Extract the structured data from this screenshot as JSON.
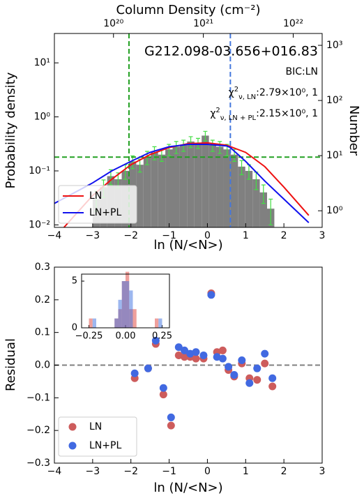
{
  "chart_data": [
    {
      "type": "histogram",
      "title": "G212.098-03.656+016.83",
      "annotations": [
        "BIC:LN"
      ],
      "fit_stats": [
        {
          "symbol": "χ",
          "sup": "2",
          "sub": "ν, LN",
          "text": ":2.79×10⁰, 1"
        },
        {
          "symbol": "χ",
          "sup": "2",
          "sub": "ν, LN + PL",
          "text": ":2.15×10⁰, 1"
        }
      ],
      "xlabel": "ln (N/<N>)",
      "ylabel": "Probability density",
      "y2label": "Number",
      "x2label": "Column Density (cm⁻²)",
      "bins": [
        -3.0,
        -2.81,
        -2.62,
        -2.43,
        -2.24,
        -2.05,
        -1.86,
        -1.67,
        -1.48,
        -1.29,
        -1.1,
        -0.91,
        -0.72,
        -0.53,
        -0.34,
        -0.15,
        0.04,
        0.23,
        0.42,
        0.61,
        0.8,
        0.99,
        1.18,
        1.37,
        1.56,
        1.75
      ],
      "values": [
        0.03,
        0.05,
        0.08,
        0.07,
        0.1,
        0.15,
        0.13,
        0.18,
        0.22,
        0.2,
        0.25,
        0.28,
        0.3,
        0.35,
        0.33,
        0.45,
        0.3,
        0.28,
        0.25,
        0.2,
        0.12,
        0.1,
        0.07,
        0.04,
        0.02
      ],
      "errors": [
        0.012,
        0.018,
        0.025,
        0.022,
        0.03,
        0.04,
        0.035,
        0.05,
        0.06,
        0.05,
        0.06,
        0.07,
        0.07,
        0.08,
        0.07,
        0.09,
        0.07,
        0.07,
        0.06,
        0.05,
        0.035,
        0.03,
        0.025,
        0.015,
        0.01
      ],
      "color": "#808080",
      "error_color": "#44dd44",
      "series": [
        {
          "name": "LN",
          "color": "#ee1111",
          "x": [
            -3.75,
            -3,
            -2.5,
            -2,
            -1.5,
            -1,
            -0.5,
            0,
            0.5,
            1,
            1.5,
            2,
            2.65
          ],
          "values": [
            0.009,
            0.035,
            0.07,
            0.13,
            0.2,
            0.27,
            0.32,
            0.33,
            0.3,
            0.22,
            0.12,
            0.05,
            0.015
          ]
        },
        {
          "name": "LN+PL",
          "color": "#1111ee",
          "x": [
            -4,
            -3,
            -2.5,
            -2,
            -1.5,
            -1,
            -0.5,
            0,
            0.5,
            0.6,
            1,
            1.5,
            2,
            2.65
          ],
          "values": [
            0.025,
            0.06,
            0.1,
            0.15,
            0.22,
            0.28,
            0.31,
            0.31,
            0.29,
            0.27,
            0.15,
            0.065,
            0.03,
            0.011
          ]
        }
      ],
      "vlines": [
        {
          "value": -2.05,
          "color": "#22a022"
        },
        {
          "value": 0.6,
          "color": "#4477dd"
        }
      ],
      "hlines": [
        {
          "value": 0.18,
          "color": "#22a022"
        }
      ],
      "log_y": true,
      "xlim": [
        -4,
        3
      ],
      "xticks": [
        {
          "value": -4,
          "label": "−4"
        },
        {
          "value": -3,
          "label": "−3"
        },
        {
          "value": -2,
          "label": "−2"
        },
        {
          "value": -1,
          "label": "−1"
        },
        0,
        1,
        2,
        3
      ],
      "ylim": [
        0.009,
        35
      ],
      "yticks": [
        {
          "value": 0.01,
          "label": "10⁻²"
        },
        {
          "value": 0.1,
          "label": "10⁻¹"
        },
        {
          "value": 1,
          "label": "10⁰"
        },
        {
          "value": 10,
          "label": "10¹"
        }
      ],
      "y2lim": [
        0.5,
        1640
      ],
      "y2ticks": [
        {
          "value": 1,
          "label": "10⁰"
        },
        {
          "value": 10,
          "label": "10¹"
        },
        {
          "value": 100,
          "label": "10²"
        },
        {
          "value": 1000,
          "label": "10³"
        }
      ],
      "x2lim": [
        2.2e+19,
        2.1e+22
      ],
      "x2ticks": [
        {
          "value": 1e+20,
          "label": "10²⁰"
        },
        {
          "value": 1e+21,
          "label": "10²¹"
        },
        {
          "value": 1e+22,
          "label": "10²²"
        }
      ],
      "legend": "lower left"
    },
    {
      "type": "scatter",
      "xlabel": "ln (N/<N>)",
      "ylabel": "Residual",
      "x": [
        -1.9,
        -1.55,
        -1.35,
        -1.15,
        -0.95,
        -0.75,
        -0.6,
        -0.45,
        -0.3,
        -0.1,
        0.1,
        0.25,
        0.4,
        0.55,
        0.7,
        0.9,
        1.1,
        1.3,
        1.5,
        1.7
      ],
      "series": [
        {
          "name": "LN",
          "color": "#cd5c5c",
          "values": [
            -0.04,
            -0.01,
            0.065,
            -0.09,
            -0.185,
            0.03,
            0.025,
            0.025,
            0.02,
            0.02,
            0.22,
            0.04,
            0.045,
            -0.015,
            -0.035,
            0.005,
            -0.04,
            -0.045,
            0.005,
            -0.065
          ]
        },
        {
          "name": "LN+PL",
          "color": "#4169e1",
          "values": [
            -0.025,
            -0.01,
            0.075,
            -0.07,
            -0.16,
            0.055,
            0.045,
            0.035,
            0.04,
            0.03,
            0.215,
            0.025,
            0.02,
            -0.005,
            -0.03,
            0.015,
            -0.055,
            -0.01,
            0.035,
            -0.04
          ]
        }
      ],
      "hlines": [
        {
          "value": 0,
          "color": "#808080"
        }
      ],
      "xlim": [
        -4,
        3
      ],
      "xticks": [
        {
          "value": -4,
          "label": "−4"
        },
        {
          "value": -3,
          "label": "−3"
        },
        {
          "value": -2,
          "label": "−2"
        },
        {
          "value": -1,
          "label": "−1"
        },
        0,
        1,
        2,
        3
      ],
      "ylim": [
        -0.3,
        0.3
      ],
      "yticks": [
        {
          "value": -0.3,
          "label": "−0.3"
        },
        {
          "value": -0.2,
          "label": "−0.2"
        },
        {
          "value": -0.1,
          "label": "−0.1"
        },
        {
          "value": 0,
          "label": "0.0"
        },
        {
          "value": 0.1,
          "label": "0.1"
        },
        {
          "value": 0.2,
          "label": "0.2"
        },
        {
          "value": 0.3,
          "label": "0.3"
        }
      ],
      "legend": "lower left"
    },
    {
      "type": "histogram",
      "bins": [
        -0.25,
        -0.225,
        -0.2,
        -0.175,
        -0.15,
        -0.125,
        -0.1,
        -0.075,
        -0.05,
        -0.025,
        0,
        0.025,
        0.05,
        0.075,
        0.1,
        0.125,
        0.15,
        0.175,
        0.2,
        0.225,
        0.25
      ],
      "series": [
        {
          "name": "LN",
          "color": "#e0413a",
          "opacity": 0.5,
          "values": [
            1,
            0,
            0,
            0,
            0,
            0,
            0,
            1,
            2,
            5,
            6,
            2,
            2,
            0,
            0,
            0,
            0,
            0,
            1,
            0
          ]
        },
        {
          "name": "LN+PL",
          "color": "#3b6fe0",
          "opacity": 0.5,
          "values": [
            0,
            1,
            0,
            0,
            0,
            0,
            0,
            1,
            3,
            5,
            5,
            4,
            0,
            0,
            0,
            0,
            0,
            0,
            0,
            1
          ]
        }
      ],
      "xlim": [
        -0.3,
        0.3
      ],
      "xticks": [
        {
          "value": -0.25,
          "label": "−0.25"
        },
        {
          "value": 0,
          "label": "0.00"
        },
        {
          "value": 0.25,
          "label": "0.25"
        }
      ],
      "ylim": [
        0,
        5.75
      ],
      "yticks": [
        0,
        5
      ]
    }
  ]
}
